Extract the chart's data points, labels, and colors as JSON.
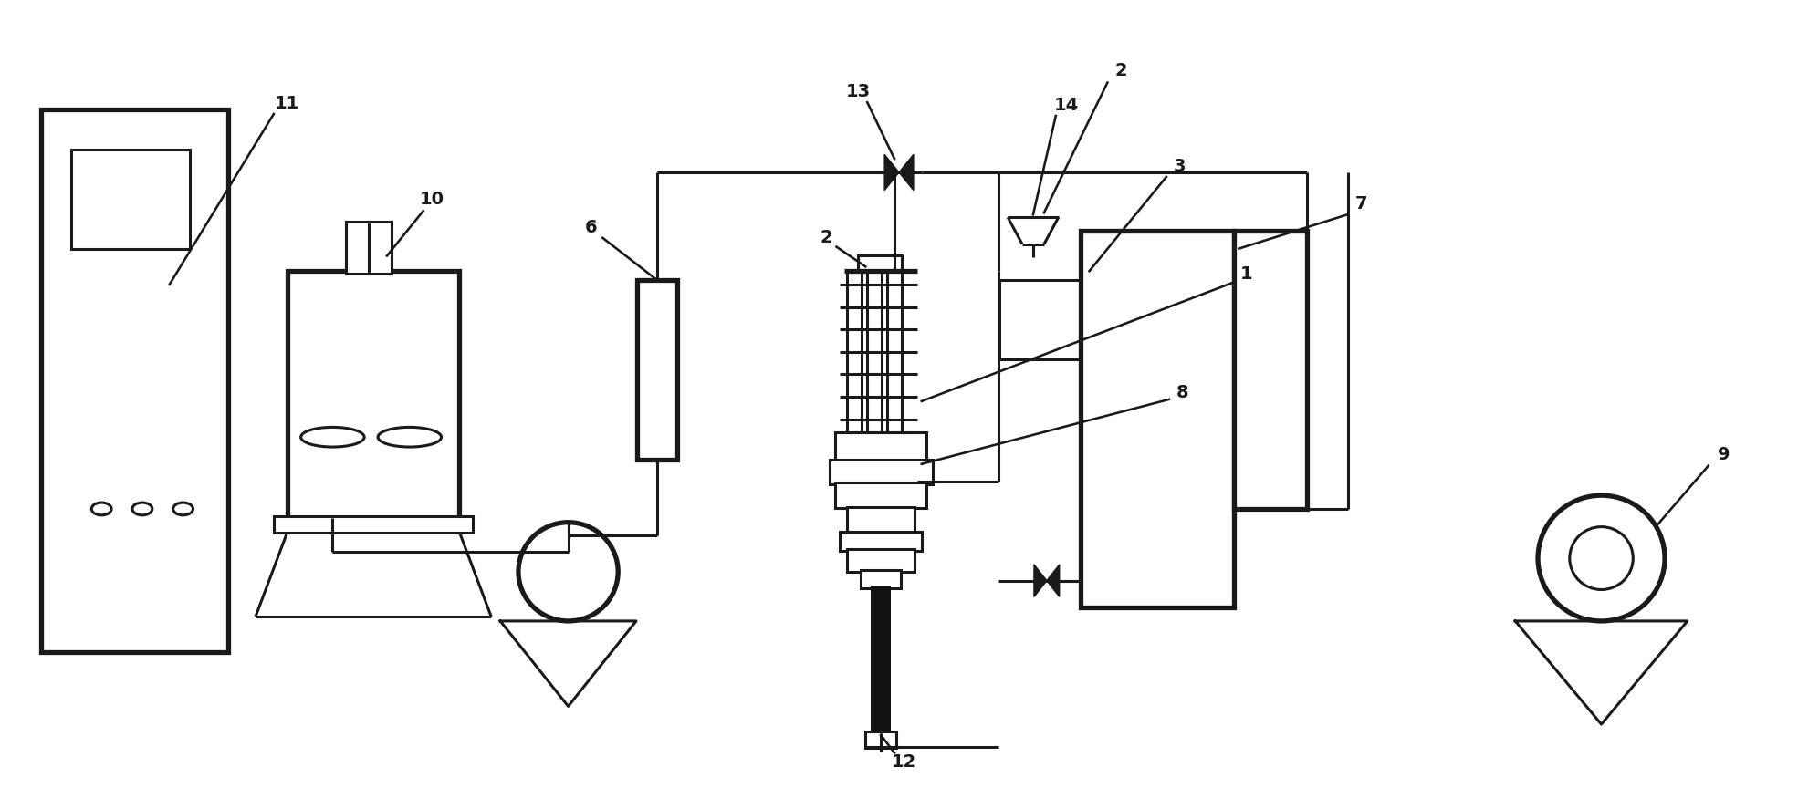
{
  "bg": "#ffffff",
  "lc": "#1a1a1a",
  "lw": 2.2,
  "lw_thick": 3.8,
  "fs": 14,
  "fw": "bold"
}
